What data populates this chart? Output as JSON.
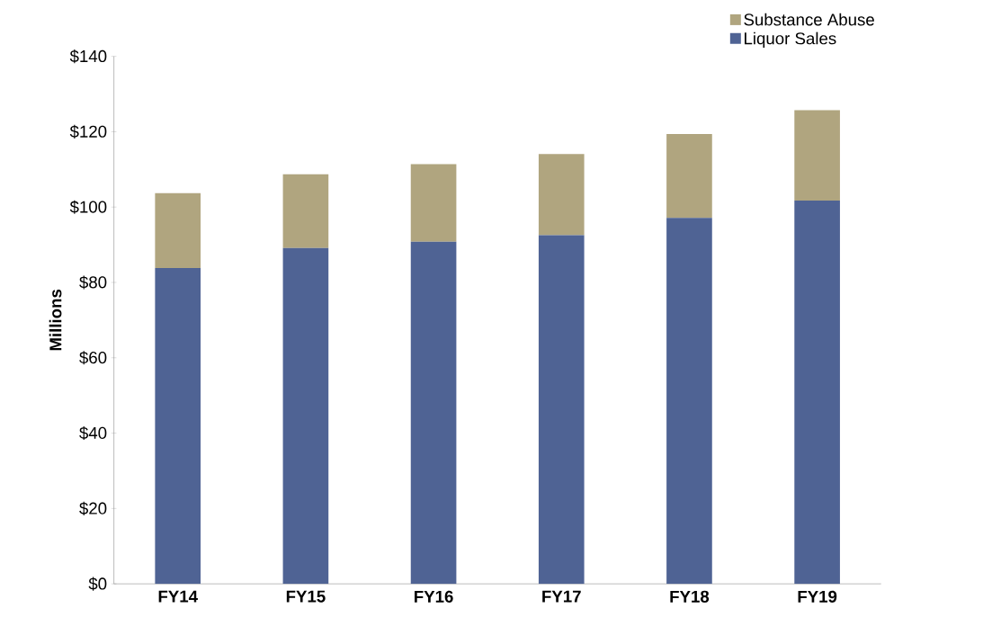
{
  "chart_data": {
    "type": "bar",
    "stacked": true,
    "ylabel": "Millions",
    "categories": [
      "FY14",
      "FY15",
      "FY16",
      "FY17",
      "FY18",
      "FY19"
    ],
    "series": [
      {
        "name": "Liquor Sales",
        "color": "#4f6394",
        "values": [
          83.8,
          89.1,
          90.8,
          92.5,
          97.1,
          101.7
        ]
      },
      {
        "name": "Substance Abuse",
        "color": "#b0a57f",
        "values": [
          19.9,
          19.6,
          20.6,
          21.6,
          22.3,
          24.0
        ]
      }
    ],
    "ylim": [
      0,
      140
    ],
    "yticks": [
      {
        "value": 0,
        "label": "$0"
      },
      {
        "value": 20,
        "label": "$20"
      },
      {
        "value": 40,
        "label": "$40"
      },
      {
        "value": 60,
        "label": "$60"
      },
      {
        "value": 80,
        "label": "$80"
      },
      {
        "value": 100,
        "label": "$100"
      },
      {
        "value": 120,
        "label": "$120"
      },
      {
        "value": 140,
        "label": "$140"
      }
    ],
    "grid": false,
    "legend": "top right"
  }
}
